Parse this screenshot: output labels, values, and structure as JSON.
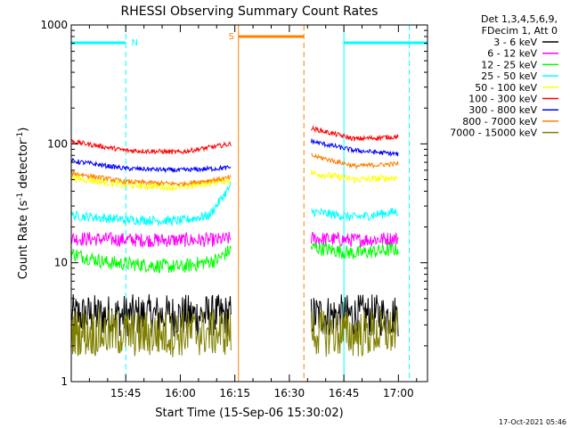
{
  "chart_data": {
    "type": "line",
    "title": "RHESSI Observing Summary Count Rates",
    "xlabel": "Start Time (15-Sep-06 15:30:02)",
    "ylabel": "Count Rate (s",
    "ylabel_sup1": "-1",
    "ylabel_mid": " detector",
    "ylabel_sup2": "-1",
    "ylabel_end": ")",
    "x_unit": "minutes since 15:30:02",
    "xlim": [
      0,
      98
    ],
    "ylim": [
      1,
      1000
    ],
    "yscale": "log",
    "xticks": [
      {
        "value": 15,
        "label": "15:45"
      },
      {
        "value": 30,
        "label": "16:00"
      },
      {
        "value": 45,
        "label": "16:15"
      },
      {
        "value": 60,
        "label": "16:30"
      },
      {
        "value": 75,
        "label": "16:45"
      },
      {
        "value": 90,
        "label": "17:00"
      }
    ],
    "yticks": [
      {
        "value": 1,
        "label": "1"
      },
      {
        "value": 10,
        "label": "10"
      },
      {
        "value": 100,
        "label": "100"
      },
      {
        "value": 1000,
        "label": "1000"
      }
    ],
    "legend_header": [
      "Det 1,3,4,5,6,9,",
      "FDecim 1, Att 0"
    ],
    "legend_position": "right",
    "series": [
      {
        "name": "3 - 6 keV",
        "color": "#000000",
        "segments": [
          [
            {
              "x": 0,
              "y": 3.6
            },
            {
              "x": 20,
              "y": 3.6
            },
            {
              "x": 44,
              "y": 3.6
            }
          ],
          [
            {
              "x": 66,
              "y": 3.6
            },
            {
              "x": 78,
              "y": 3.6
            },
            {
              "x": 90,
              "y": 3.6
            }
          ]
        ],
        "noise": 0.18
      },
      {
        "name": "6 - 12 keV",
        "color": "#ff00ff",
        "segments": [
          [
            {
              "x": 0,
              "y": 16
            },
            {
              "x": 20,
              "y": 15.5
            },
            {
              "x": 40,
              "y": 15.5
            },
            {
              "x": 44,
              "y": 16
            }
          ],
          [
            {
              "x": 66,
              "y": 16
            },
            {
              "x": 78,
              "y": 15.5
            },
            {
              "x": 90,
              "y": 16
            }
          ]
        ],
        "noise": 0.06
      },
      {
        "name": "12 - 25 keV",
        "color": "#00ff00",
        "segments": [
          [
            {
              "x": 0,
              "y": 12
            },
            {
              "x": 10,
              "y": 10
            },
            {
              "x": 30,
              "y": 9.2
            },
            {
              "x": 40,
              "y": 10.5
            },
            {
              "x": 44,
              "y": 13
            }
          ],
          [
            {
              "x": 66,
              "y": 13.5
            },
            {
              "x": 78,
              "y": 12
            },
            {
              "x": 90,
              "y": 13
            }
          ]
        ],
        "noise": 0.06
      },
      {
        "name": "25 - 50 keV",
        "color": "#00ffff",
        "segments": [
          [
            {
              "x": 0,
              "y": 25
            },
            {
              "x": 15,
              "y": 23
            },
            {
              "x": 30,
              "y": 22.5
            },
            {
              "x": 38,
              "y": 25
            },
            {
              "x": 44,
              "y": 45
            }
          ],
          [
            {
              "x": 66,
              "y": 27
            },
            {
              "x": 78,
              "y": 24
            },
            {
              "x": 90,
              "y": 27
            }
          ]
        ],
        "noise": 0.04
      },
      {
        "name": "50 - 100 keV",
        "color": "#ffff00",
        "segments": [
          [
            {
              "x": 0,
              "y": 52
            },
            {
              "x": 15,
              "y": 45
            },
            {
              "x": 30,
              "y": 43
            },
            {
              "x": 44,
              "y": 50
            }
          ],
          [
            {
              "x": 66,
              "y": 57
            },
            {
              "x": 78,
              "y": 50
            },
            {
              "x": 90,
              "y": 52
            }
          ]
        ],
        "noise": 0.03
      },
      {
        "name": "100 - 300 keV",
        "color": "#ff0000",
        "segments": [
          [
            {
              "x": 0,
              "y": 105
            },
            {
              "x": 15,
              "y": 88
            },
            {
              "x": 30,
              "y": 85
            },
            {
              "x": 44,
              "y": 100
            }
          ],
          [
            {
              "x": 66,
              "y": 135
            },
            {
              "x": 78,
              "y": 110
            },
            {
              "x": 90,
              "y": 115
            }
          ]
        ],
        "noise": 0.02
      },
      {
        "name": "300 - 800 keV",
        "color": "#0000ff",
        "segments": [
          [
            {
              "x": 0,
              "y": 72
            },
            {
              "x": 15,
              "y": 62
            },
            {
              "x": 30,
              "y": 60
            },
            {
              "x": 44,
              "y": 63
            }
          ],
          [
            {
              "x": 66,
              "y": 105
            },
            {
              "x": 78,
              "y": 88
            },
            {
              "x": 90,
              "y": 82
            }
          ]
        ],
        "noise": 0.02
      },
      {
        "name": "800 - 7000 keV",
        "color": "#ff8000",
        "segments": [
          [
            {
              "x": 0,
              "y": 57
            },
            {
              "x": 15,
              "y": 48
            },
            {
              "x": 30,
              "y": 46
            },
            {
              "x": 44,
              "y": 52
            }
          ],
          [
            {
              "x": 66,
              "y": 80
            },
            {
              "x": 78,
              "y": 65
            },
            {
              "x": 90,
              "y": 68
            }
          ]
        ],
        "noise": 0.02
      },
      {
        "name": "7000 - 15000 keV",
        "color": "#808000",
        "segments": [
          [
            {
              "x": 0,
              "y": 2.6
            },
            {
              "x": 20,
              "y": 2.5
            },
            {
              "x": 44,
              "y": 2.6
            }
          ],
          [
            {
              "x": 66,
              "y": 2.6
            },
            {
              "x": 78,
              "y": 2.5
            },
            {
              "x": 90,
              "y": 2.6
            }
          ]
        ],
        "noise": 0.2
      }
    ],
    "markers": [
      {
        "kind": "night-bar",
        "label": "N",
        "color": "#00ffff",
        "x1": 0,
        "x2": 15
      },
      {
        "kind": "night-bar",
        "label": "",
        "color": "#00ffff",
        "x1": 75,
        "x2": 98
      },
      {
        "kind": "saa-bar",
        "label": "S",
        "color": "#ff8000",
        "x1": 46,
        "x2": 64
      }
    ],
    "vlines": [
      {
        "x": 0,
        "color": "#00ffff",
        "style": "solid"
      },
      {
        "x": 15,
        "color": "#00ffff",
        "style": "dashed"
      },
      {
        "x": 75,
        "color": "#00ffff",
        "style": "solid"
      },
      {
        "x": 93,
        "color": "#00ffff",
        "style": "dashed"
      },
      {
        "x": 46,
        "color": "#ff8000",
        "style": "solid"
      },
      {
        "x": 64,
        "color": "#ff8000",
        "style": "dashed"
      }
    ],
    "footer_date": "17-Oct-2021 05:46"
  }
}
